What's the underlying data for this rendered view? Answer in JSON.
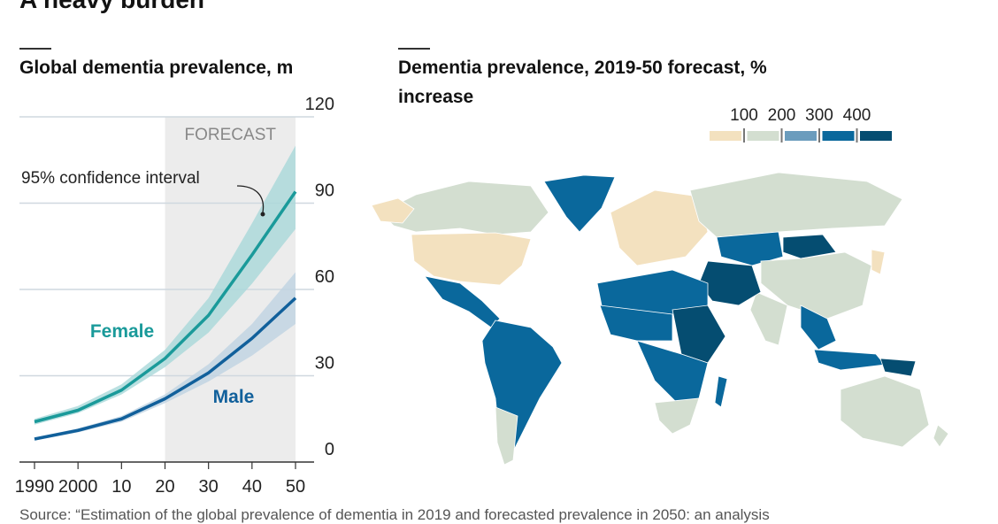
{
  "title": "A heavy burden",
  "source": "Source: “Estimation of the global prevalence of dementia in 2019 and forecasted prevalence in 2050: an analysis",
  "chart_data": [
    {
      "type": "line",
      "title": "Global dementia prevalence, m",
      "x": [
        1990,
        2000,
        2010,
        2020,
        2030,
        2040,
        2050
      ],
      "x_tick_labels": [
        "1990",
        "2000",
        "10",
        "20",
        "30",
        "40",
        "50"
      ],
      "y_ticks": [
        "0",
        "30",
        "60",
        "90",
        "120"
      ],
      "ylim": [
        0,
        120
      ],
      "grid": "horizontal",
      "forecast_region": {
        "label": "FORECAST",
        "from": 2020,
        "to": 2050
      },
      "annotation": "95% confidence interval",
      "series": [
        {
          "name": "Female",
          "color": "#1a9a9a",
          "band_color": "#a9d8da",
          "values": [
            14,
            18,
            25,
            36,
            51,
            72,
            94
          ],
          "lower": [
            13,
            17,
            23.5,
            33,
            45,
            62,
            81
          ],
          "upper": [
            15,
            19.5,
            27,
            39,
            57,
            83,
            110
          ]
        },
        {
          "name": "Male",
          "color": "#11609b",
          "band_color": "#bfd3e2",
          "values": [
            8,
            11,
            15,
            22,
            31,
            43,
            57
          ],
          "lower": [
            7.5,
            10.3,
            14,
            20.5,
            28,
            37,
            48
          ],
          "upper": [
            8.5,
            11.7,
            16,
            23.5,
            34,
            48,
            66
          ]
        }
      ]
    },
    {
      "type": "choropleth",
      "title": "Dementia prevalence, 2019-50 forecast, % increase",
      "legend": {
        "tick_labels": [
          "100",
          "200",
          "300",
          "400"
        ],
        "colors": [
          "#f3e1bf",
          "#d3ded0",
          "#6b9cbd",
          "#0a689c",
          "#054d71"
        ]
      }
    }
  ]
}
